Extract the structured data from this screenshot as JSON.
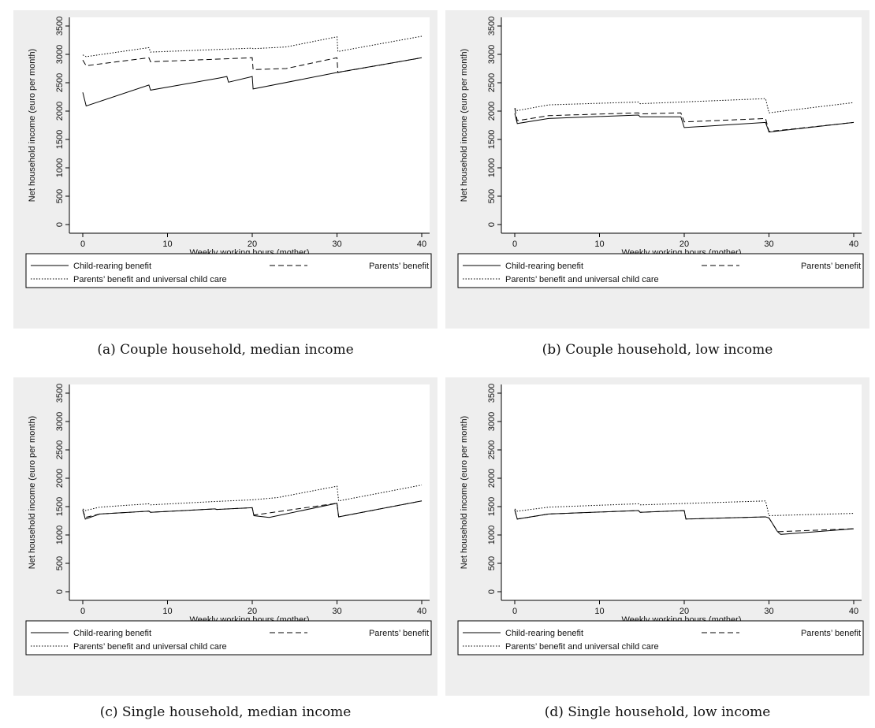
{
  "chart_data": [
    {
      "type": "line",
      "caption": "(a) Couple household, median income",
      "xlabel": "Weekly working hours (mother)",
      "ylabel": "Net household income (euro per month)",
      "xlim": [
        0,
        40
      ],
      "ylim": [
        0,
        3500
      ],
      "xticks": [
        0,
        10,
        20,
        30,
        40
      ],
      "yticks": [
        0,
        500,
        1000,
        1500,
        2000,
        2500,
        3000,
        3500
      ],
      "legend": "bottom",
      "series": [
        {
          "name": "Child-rearing benefit",
          "style": "solid",
          "x": [
            0,
            0.4,
            7.8,
            8,
            16,
            17,
            17.2,
            20,
            20.1,
            30,
            40
          ],
          "y": [
            2330,
            2090,
            2460,
            2370,
            2580,
            2610,
            2510,
            2610,
            2390,
            2680,
            2940
          ]
        },
        {
          "name": "Parents’ benefit",
          "style": "dashed",
          "x": [
            0,
            0.4,
            7.8,
            8,
            20,
            20.1,
            24,
            30,
            30.1,
            40
          ],
          "y": [
            2900,
            2800,
            2940,
            2870,
            2940,
            2730,
            2750,
            2940,
            2680,
            2940
          ]
        },
        {
          "name": "Parents’ benefit and universal child care",
          "style": "dotted",
          "x": [
            0,
            0.4,
            7.8,
            8,
            20,
            20.1,
            24,
            30,
            30.1,
            40
          ],
          "y": [
            2990,
            2960,
            3120,
            3040,
            3110,
            3100,
            3130,
            3310,
            3050,
            3320
          ]
        }
      ]
    },
    {
      "type": "line",
      "caption": "(b) Couple household, low income",
      "xlabel": "Weekly working hours (mother)",
      "ylabel": "Net household income (euro per month)",
      "xlim": [
        0,
        40
      ],
      "ylim": [
        0,
        3500
      ],
      "xticks": [
        0,
        10,
        20,
        30,
        40
      ],
      "yticks": [
        0,
        500,
        1000,
        1500,
        2000,
        2500,
        3000,
        3500
      ],
      "legend": "bottom",
      "series": [
        {
          "name": "Child-rearing benefit",
          "style": "solid",
          "x": [
            0,
            0.3,
            4,
            14.6,
            14.8,
            19.6,
            20,
            29.6,
            30,
            40
          ],
          "y": [
            1960,
            1780,
            1870,
            1930,
            1900,
            1900,
            1710,
            1800,
            1630,
            1800
          ]
        },
        {
          "name": "Parents’ benefit",
          "style": "dashed",
          "x": [
            0,
            0.3,
            4,
            14.6,
            14.8,
            19.6,
            20,
            29.6,
            30,
            40
          ],
          "y": [
            2050,
            1830,
            1920,
            1970,
            1950,
            1970,
            1810,
            1870,
            1640,
            1800
          ]
        },
        {
          "name": "Parents’ benefit and universal child care",
          "style": "dotted",
          "x": [
            0,
            0.3,
            4,
            14.6,
            14.8,
            29.6,
            30,
            40
          ],
          "y": [
            2050,
            2010,
            2110,
            2160,
            2130,
            2220,
            1970,
            2150
          ]
        }
      ]
    },
    {
      "type": "line",
      "caption": "(c) Single household, median income",
      "xlabel": "Weekly working hours (mother)",
      "ylabel": "Net household income (euro per month)",
      "xlim": [
        0,
        40
      ],
      "ylim": [
        0,
        3500
      ],
      "xticks": [
        0,
        10,
        20,
        30,
        40
      ],
      "yticks": [
        0,
        500,
        1000,
        1500,
        2000,
        2500,
        3000,
        3500
      ],
      "legend": "bottom",
      "series": [
        {
          "name": "Child-rearing benefit",
          "style": "solid",
          "x": [
            0,
            0.3,
            2,
            7.8,
            8,
            15.6,
            15.8,
            20,
            20.2,
            22,
            30,
            30.2,
            40
          ],
          "y": [
            1440,
            1280,
            1370,
            1420,
            1400,
            1460,
            1450,
            1480,
            1340,
            1310,
            1560,
            1320,
            1600
          ]
        },
        {
          "name": "Parents’ benefit",
          "style": "dashed",
          "x": [
            0,
            0.3,
            2,
            7.8,
            8,
            15.6,
            15.8,
            20,
            20.2,
            30,
            30.2,
            40
          ],
          "y": [
            1440,
            1310,
            1370,
            1420,
            1400,
            1460,
            1450,
            1480,
            1350,
            1560,
            1320,
            1600
          ]
        },
        {
          "name": "Parents’ benefit and universal child care",
          "style": "dotted",
          "x": [
            0,
            0.3,
            2,
            7.8,
            8,
            15.6,
            20,
            23,
            30,
            30.2,
            40
          ],
          "y": [
            1460,
            1430,
            1490,
            1550,
            1530,
            1590,
            1620,
            1660,
            1860,
            1600,
            1880
          ]
        }
      ]
    },
    {
      "type": "line",
      "caption": "(d) Single household, low income",
      "xlabel": "Weekly working hours (mother)",
      "ylabel": "Net household income (euro per month)",
      "xlim": [
        0,
        40
      ],
      "ylim": [
        0,
        3500
      ],
      "xticks": [
        0,
        10,
        20,
        30,
        40
      ],
      "yticks": [
        0,
        500,
        1000,
        1500,
        2000,
        2500,
        3000,
        3500
      ],
      "legend": "bottom",
      "series": [
        {
          "name": "Child-rearing benefit",
          "style": "solid",
          "x": [
            0,
            0.3,
            4,
            14.6,
            14.8,
            20,
            20.2,
            29.6,
            30,
            31,
            31.4,
            40
          ],
          "y": [
            1440,
            1280,
            1370,
            1430,
            1400,
            1430,
            1280,
            1320,
            1300,
            1060,
            1010,
            1110
          ]
        },
        {
          "name": "Parents’ benefit",
          "style": "dashed",
          "x": [
            0,
            0.3,
            4,
            14.6,
            14.8,
            20,
            20.2,
            29.6,
            30,
            31,
            31.4,
            40
          ],
          "y": [
            1440,
            1280,
            1370,
            1430,
            1400,
            1430,
            1280,
            1320,
            1300,
            1060,
            1060,
            1110
          ]
        },
        {
          "name": "Parents’ benefit and universal child care",
          "style": "dotted",
          "x": [
            0,
            0.3,
            4,
            14.6,
            14.8,
            29.6,
            30,
            40
          ],
          "y": [
            1460,
            1420,
            1490,
            1550,
            1530,
            1600,
            1340,
            1380
          ]
        }
      ]
    }
  ]
}
